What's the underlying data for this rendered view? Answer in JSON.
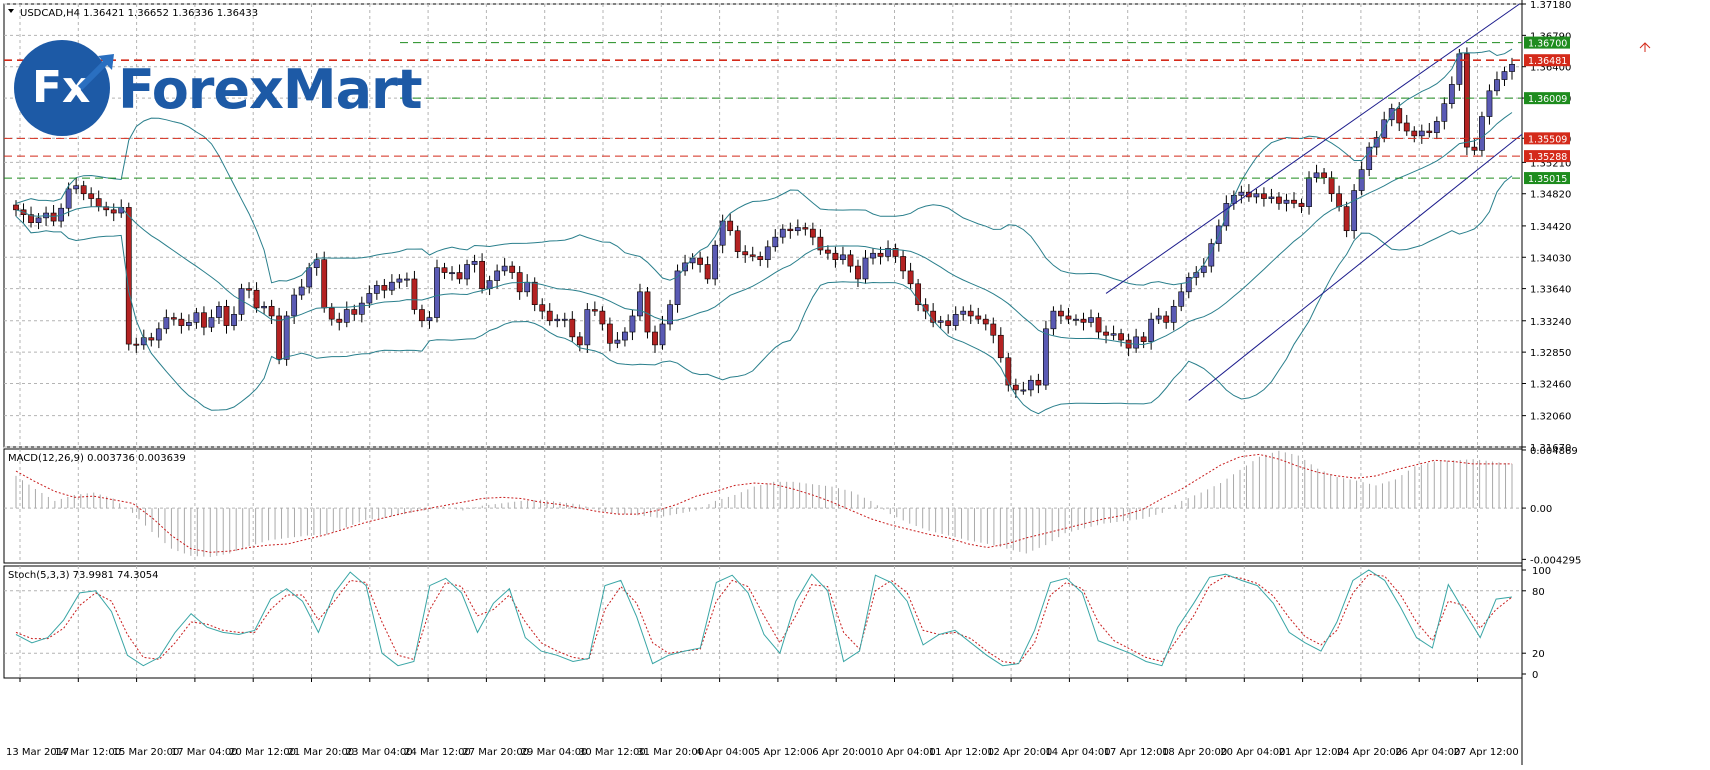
{
  "header": {
    "symbol_label": "USDCAD,H4  1.36421 1.36652 1.36336 1.36433",
    "menu_icon": "triangle-down-icon"
  },
  "logo": {
    "mark": "Fx",
    "text": "ForexMart",
    "icon": "arrow-up-icon",
    "color": "#1d5aa6"
  },
  "chart_data": [
    {
      "type": "candlestick",
      "title": "USDCAD,H4",
      "values_header": "1.36421 1.36652 1.36336 1.36433",
      "ylim": [
        1.3167,
        1.3718
      ],
      "y_ticks": [
        "1.37180",
        "1.36790",
        "1.36400",
        "1.36010",
        "1.35510",
        "1.35210",
        "1.34820",
        "1.34420",
        "1.34030",
        "1.33640",
        "1.33240",
        "1.32850",
        "1.32460",
        "1.32060",
        "1.31670"
      ],
      "x_labels": [
        "13 Mar 2017",
        "14 Mar 12:00",
        "15 Mar 20:00",
        "17 Mar 04:00",
        "20 Mar 12:00",
        "21 Mar 20:00",
        "23 Mar 04:00",
        "24 Mar 12:00",
        "27 Mar 20:00",
        "29 Mar 04:00",
        "30 Mar 12:00",
        "31 Mar 20:00",
        "4 Apr 04:00",
        "5 Apr 12:00",
        "6 Apr 20:00",
        "10 Apr 04:00",
        "11 Apr 12:00",
        "12 Apr 20:00",
        "14 Apr 04:00",
        "17 Apr 12:00",
        "18 Apr 20:00",
        "20 Apr 04:00",
        "21 Apr 12:00",
        "24 Apr 20:00",
        "26 Apr 04:00",
        "27 Apr 12:00"
      ],
      "close_path": [
        1.3462,
        1.3456,
        1.3446,
        1.3452,
        1.3458,
        1.3448,
        1.3464,
        1.3488,
        1.3492,
        1.3482,
        1.3476,
        1.3466,
        1.3462,
        1.3458,
        1.3465,
        1.3295,
        1.3294,
        1.3303,
        1.33,
        1.3314,
        1.3328,
        1.3326,
        1.3318,
        1.3322,
        1.3334,
        1.3316,
        1.3328,
        1.3342,
        1.3318,
        1.3332,
        1.3364,
        1.3362,
        1.334,
        1.3342,
        1.333,
        1.3276,
        1.333,
        1.3356,
        1.3366,
        1.339,
        1.34,
        1.334,
        1.3326,
        1.3322,
        1.3338,
        1.3332,
        1.3346,
        1.3358,
        1.3368,
        1.3362,
        1.3372,
        1.3376,
        1.3376,
        1.3338,
        1.3324,
        1.3328,
        1.339,
        1.3384,
        1.3384,
        1.3376,
        1.3394,
        1.3398,
        1.3364,
        1.3374,
        1.3386,
        1.3392,
        1.3384,
        1.336,
        1.3372,
        1.3344,
        1.3336,
        1.3324,
        1.3326,
        1.3326,
        1.3304,
        1.3294,
        1.3338,
        1.3336,
        1.332,
        1.3296,
        1.33,
        1.331,
        1.333,
        1.336,
        1.331,
        1.3294,
        1.332,
        1.3344,
        1.3386,
        1.3396,
        1.3402,
        1.3394,
        1.3376,
        1.3418,
        1.3448,
        1.3436,
        1.341,
        1.3406,
        1.3404,
        1.34,
        1.3416,
        1.3428,
        1.3438,
        1.3436,
        1.344,
        1.3438,
        1.3428,
        1.3412,
        1.3408,
        1.34,
        1.3406,
        1.3392,
        1.3376,
        1.3402,
        1.3408,
        1.3404,
        1.3414,
        1.3404,
        1.3386,
        1.337,
        1.3344,
        1.3336,
        1.3322,
        1.3324,
        1.3318,
        1.3332,
        1.3336,
        1.333,
        1.3326,
        1.332,
        1.3306,
        1.3278,
        1.3244,
        1.3238,
        1.3238,
        1.325,
        1.3244,
        1.3314,
        1.3336,
        1.333,
        1.3326,
        1.3326,
        1.3322,
        1.3328,
        1.331,
        1.3306,
        1.3308,
        1.33,
        1.329,
        1.3304,
        1.3298,
        1.3326,
        1.333,
        1.3322,
        1.3342,
        1.336,
        1.3378,
        1.3384,
        1.3392,
        1.342,
        1.3442,
        1.347,
        1.348,
        1.3484,
        1.3478,
        1.3482,
        1.3476,
        1.3478,
        1.347,
        1.3474,
        1.347,
        1.3466,
        1.3502,
        1.3508,
        1.3502,
        1.3482,
        1.3466,
        1.3436,
        1.3486,
        1.3512,
        1.354,
        1.3552,
        1.3574,
        1.3588,
        1.357,
        1.356,
        1.3554,
        1.356,
        1.3558,
        1.3572,
        1.3594,
        1.3618,
        1.3656,
        1.354,
        1.3536,
        1.3578,
        1.361,
        1.3624,
        1.3634,
        1.3643
      ],
      "overlays": [
        "Bollinger Bands",
        "Linear regression channel"
      ],
      "horizontal_levels": [
        {
          "value": 1.367,
          "label": "1.36700",
          "color": "#1e8c1e",
          "style": "dashed"
        },
        {
          "value": 1.36481,
          "label": "1.36481",
          "color": "#d42a1a",
          "style": "dashed"
        },
        {
          "value": 1.36009,
          "label": "1.36009",
          "color": "#1e8c1e",
          "style": "dashed"
        },
        {
          "value": 1.35509,
          "label": "1.35509",
          "color": "#d42a1a",
          "style": "dashed"
        },
        {
          "value": 1.35288,
          "label": "1.35288",
          "color": "#d42a1a",
          "style": "dashed"
        },
        {
          "value": 1.35015,
          "label": "1.35015",
          "color": "#1e8c1e",
          "style": "dashed"
        }
      ],
      "grid": true,
      "colors": {
        "bull": "#5a5ab4",
        "bear": "#b42222",
        "bands": "#2a7f8c",
        "channel": "#1c1c8c"
      }
    },
    {
      "type": "bar",
      "title": "MACD(12,26,9) 0.003736 0.003639",
      "y_ticks": [
        "0.004869",
        "0.00",
        "-0.004295"
      ],
      "ylim": [
        -0.0046,
        0.00495
      ],
      "histogram": [
        0.0027,
        0.0016,
        0.0006,
        0.0011,
        0.0013,
        0.0008,
        -0.0004,
        -0.002,
        -0.0034,
        -0.004,
        -0.0041,
        -0.0038,
        -0.0032,
        -0.0027,
        -0.0025,
        -0.0023,
        -0.0022,
        -0.0016,
        -0.001,
        -0.0008,
        -0.0005,
        -0.0002,
        0.0001,
        -0.0002,
        0.0002,
        0.0004,
        0.0006,
        0.0007,
        0.0005,
        0.0003,
        -0.0002,
        -0.0005,
        -0.0006,
        -0.0008,
        -0.0005,
        -0.0002,
        0.0006,
        0.0011,
        0.0018,
        0.0022,
        0.0022,
        0.002,
        0.0018,
        0.0014,
        0.0006,
        -0.0005,
        -0.0013,
        -0.0019,
        -0.0023,
        -0.0027,
        -0.003,
        -0.0034,
        -0.0038,
        -0.0031,
        -0.0021,
        -0.0017,
        -0.0013,
        -0.0011,
        -0.0009,
        -0.0004,
        0.0006,
        0.0013,
        0.0021,
        0.0032,
        0.0043,
        0.0048,
        0.0044,
        0.0033,
        0.0026,
        0.0023,
        0.0019,
        0.0024,
        0.0035,
        0.0039,
        0.004,
        0.0041,
        0.0039,
        0.0037
      ],
      "signal": [
        0.0031,
        0.0022,
        0.0014,
        0.0009,
        0.001,
        0.0007,
        0.0004,
        -0.0008,
        -0.0023,
        -0.0034,
        -0.0037,
        -0.0036,
        -0.0033,
        -0.0031,
        -0.003,
        -0.0026,
        -0.0022,
        -0.0017,
        -0.0012,
        -0.0008,
        -0.0004,
        -0.0001,
        0.0002,
        0.0005,
        0.0008,
        0.0009,
        0.0008,
        0.0005,
        0.0003,
        0.0,
        -0.0003,
        -0.0005,
        -0.0005,
        -0.0002,
        0.0003,
        0.001,
        0.0014,
        0.0019,
        0.0021,
        0.002,
        0.0016,
        0.0011,
        0.0005,
        -0.0002,
        -0.0009,
        -0.0014,
        -0.0018,
        -0.0022,
        -0.0025,
        -0.003,
        -0.0033,
        -0.003,
        -0.0025,
        -0.0021,
        -0.0017,
        -0.0013,
        -0.0009,
        -0.0006,
        -0.0001,
        0.0008,
        0.0016,
        0.0026,
        0.0036,
        0.0043,
        0.0045,
        0.0041,
        0.0035,
        0.003,
        0.0027,
        0.0025,
        0.0027,
        0.0032,
        0.0036,
        0.004,
        0.0039,
        0.0037,
        0.0037,
        0.0037
      ],
      "colors": {
        "histogram": "#a9a9a9",
        "signal": "#c81e1e"
      }
    },
    {
      "type": "line",
      "title": "Stoch(5,3,3) 73.9981 74.3054",
      "y_ticks": [
        "100",
        "80",
        "20",
        "0"
      ],
      "ylim": [
        0,
        100
      ],
      "main": [
        38,
        30,
        35,
        52,
        78,
        80,
        60,
        18,
        8,
        16,
        40,
        58,
        45,
        40,
        38,
        42,
        72,
        82,
        70,
        40,
        78,
        98,
        85,
        20,
        8,
        12,
        85,
        92,
        78,
        40,
        68,
        82,
        35,
        22,
        18,
        12,
        15,
        85,
        90,
        55,
        10,
        18,
        22,
        25,
        88,
        95,
        78,
        38,
        20,
        70,
        96,
        80,
        12,
        22,
        95,
        88,
        70,
        28,
        38,
        42,
        30,
        18,
        8,
        10,
        42,
        88,
        92,
        78,
        32,
        26,
        20,
        12,
        8,
        45,
        68,
        93,
        96,
        90,
        85,
        68,
        40,
        30,
        22,
        50,
        90,
        100,
        90,
        64,
        35,
        25,
        86,
        60,
        35,
        72,
        74
      ],
      "signal": [
        40,
        34,
        34,
        44,
        66,
        78,
        70,
        38,
        16,
        14,
        30,
        50,
        48,
        42,
        40,
        40,
        62,
        76,
        76,
        52,
        70,
        90,
        88,
        50,
        18,
        14,
        62,
        88,
        84,
        56,
        62,
        76,
        50,
        30,
        22,
        16,
        14,
        62,
        84,
        68,
        30,
        20,
        22,
        24,
        70,
        90,
        84,
        56,
        30,
        56,
        86,
        84,
        40,
        24,
        80,
        90,
        78,
        42,
        38,
        40,
        34,
        22,
        12,
        10,
        30,
        76,
        88,
        82,
        50,
        32,
        24,
        16,
        12,
        34,
        56,
        85,
        94,
        92,
        87,
        75,
        54,
        36,
        28,
        42,
        78,
        96,
        94,
        76,
        50,
        32,
        70,
        66,
        44,
        62,
        74
      ],
      "colors": {
        "main": "#3aa6a6",
        "signal": "#c81e1e"
      }
    }
  ]
}
